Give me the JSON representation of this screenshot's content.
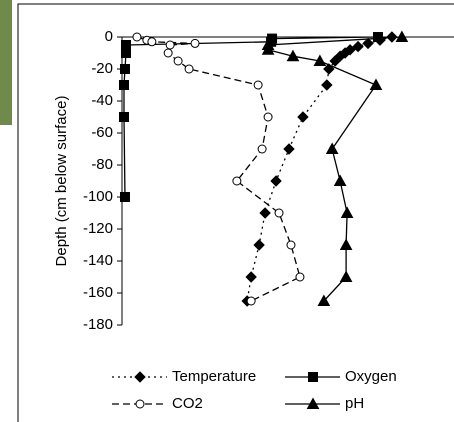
{
  "chart_data": {
    "type": "line",
    "y_label": "Depth (cm below surface)",
    "ylim": [
      -180,
      0
    ],
    "yticks": [
      0,
      -20,
      -40,
      -60,
      -80,
      -100,
      -120,
      -140,
      -160,
      -180
    ],
    "xlim": [
      0,
      100
    ],
    "series": [
      {
        "name": "Temperature",
        "color": "#000000",
        "marker": "diamond",
        "dash": "dotted",
        "x": [
          81.3,
          77.7,
          74.1,
          71.1,
          68.7,
          67.2,
          65.7,
          64.2,
          62.3,
          61.7,
          54.5,
          50.3,
          46.4,
          43.1,
          41.3,
          38.9,
          37.7
        ],
        "y": [
          0,
          -2,
          -4,
          -6,
          -8,
          -10,
          -12,
          -15,
          -20,
          -30,
          -50,
          -70,
          -90,
          -110,
          -130,
          -150,
          -165
        ]
      },
      {
        "name": "Oxygen",
        "color": "#000000",
        "marker": "square",
        "dash": "solid",
        "x": [
          77.1,
          45.2,
          44.9,
          1.2,
          1.2,
          0.9,
          0.6,
          0.6,
          0.9
        ],
        "y": [
          0,
          -1,
          -3,
          -5,
          -10,
          -20,
          -30,
          -50,
          -100
        ]
      },
      {
        "name": "CO2",
        "color": "#000000",
        "marker": "circle",
        "dash": "dashed",
        "x": [
          4.5,
          7.5,
          9,
          22,
          14.5,
          13.9,
          16.9,
          20.2,
          41,
          44,
          42.2,
          34.6,
          47.3,
          50.9,
          53.6,
          38.9
        ],
        "y": [
          0,
          -2,
          -3,
          -4,
          -5,
          -10,
          -15,
          -20,
          -30,
          -50,
          -70,
          -90,
          -110,
          -130,
          -150,
          -165
        ]
      },
      {
        "name": "pH",
        "color": "#000000",
        "marker": "triangle",
        "dash": "solid",
        "x": [
          84.3,
          44,
          44,
          51.5,
          59.6,
          76.5,
          63.3,
          65.7,
          67.8,
          67.5,
          67.5,
          60.8
        ],
        "y": [
          0,
          -5,
          -8,
          -12,
          -15,
          -30,
          -70,
          -90,
          -110,
          -130,
          -150,
          -165
        ]
      }
    ]
  }
}
